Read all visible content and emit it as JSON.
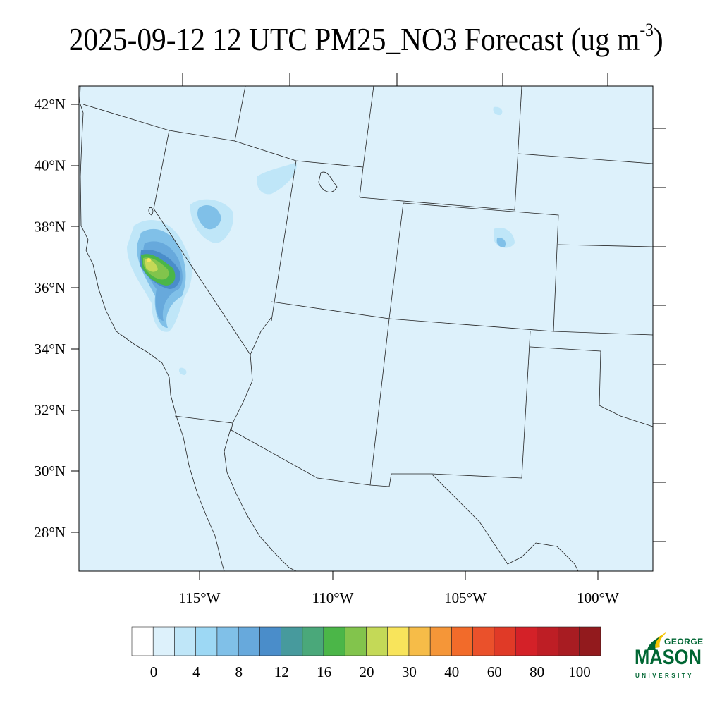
{
  "title": {
    "main": "2025-09-12 12 UTC PM25_NO3 Forecast (ug m",
    "superscript": "-3",
    "close": ")"
  },
  "map": {
    "lat_labels": [
      "42°N",
      "40°N",
      "38°N",
      "36°N",
      "34°N",
      "32°N",
      "30°N",
      "28°N"
    ],
    "lon_labels": [
      "115°W",
      "110°W",
      "105°W",
      "100°W"
    ],
    "background_color": "#ddf1fb",
    "border_color": "#222222"
  },
  "colorbar": {
    "colors": [
      "#ffffff",
      "#ddf1fb",
      "#bfe6f8",
      "#9dd8f4",
      "#80c0e8",
      "#67a9dc",
      "#4a8dca",
      "#479a9d",
      "#4aa87a",
      "#4bb648",
      "#82c44c",
      "#c4d957",
      "#f8e45b",
      "#f6bc48",
      "#f59638",
      "#f26b2a",
      "#ea512b",
      "#e03a27",
      "#d42128",
      "#be1e25",
      "#a81c22",
      "#921a1d"
    ],
    "labels": [
      "0",
      "4",
      "8",
      "12",
      "16",
      "20",
      "30",
      "40",
      "60",
      "80",
      "100"
    ]
  },
  "logo": {
    "line1": "GEORGE",
    "line2": "MASON",
    "line3": "UNIVERSITY",
    "color": "#006633",
    "accent": "#f5c400"
  }
}
